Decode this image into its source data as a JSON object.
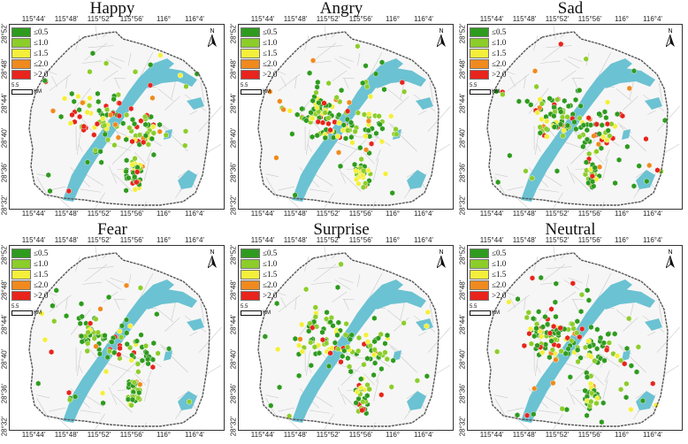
{
  "axes": {
    "lon_ticks": [
      "115°44'",
      "115°48'",
      "115°52'",
      "115°56'",
      "116°",
      "116°4'"
    ],
    "lat_ticks": [
      "28°52'",
      "28°48'",
      "28°44'",
      "28°40'",
      "28°36'",
      "28°32'"
    ]
  },
  "legend": [
    {
      "label": "≤0.5",
      "color": "#2e9b1e"
    },
    {
      "label": "≤1.0",
      "color": "#8ccd2a"
    },
    {
      "label": "≤1.5",
      "color": "#f4ef3a"
    },
    {
      "label": "≤2.0",
      "color": "#f08a1e"
    },
    {
      "label": ">2.0",
      "color": "#e8241c"
    }
  ],
  "scale": {
    "value": "5.5",
    "unit": "KM"
  },
  "north_label": "N",
  "colors": {
    "water": "#6bc2d2",
    "roads": "#c9c9c9",
    "boundary": "#555555"
  },
  "panels": [
    {
      "title": "Happy"
    },
    {
      "title": "Angry"
    },
    {
      "title": "Sad"
    },
    {
      "title": "Fear"
    },
    {
      "title": "Surprise"
    },
    {
      "title": "Neutral"
    }
  ]
}
